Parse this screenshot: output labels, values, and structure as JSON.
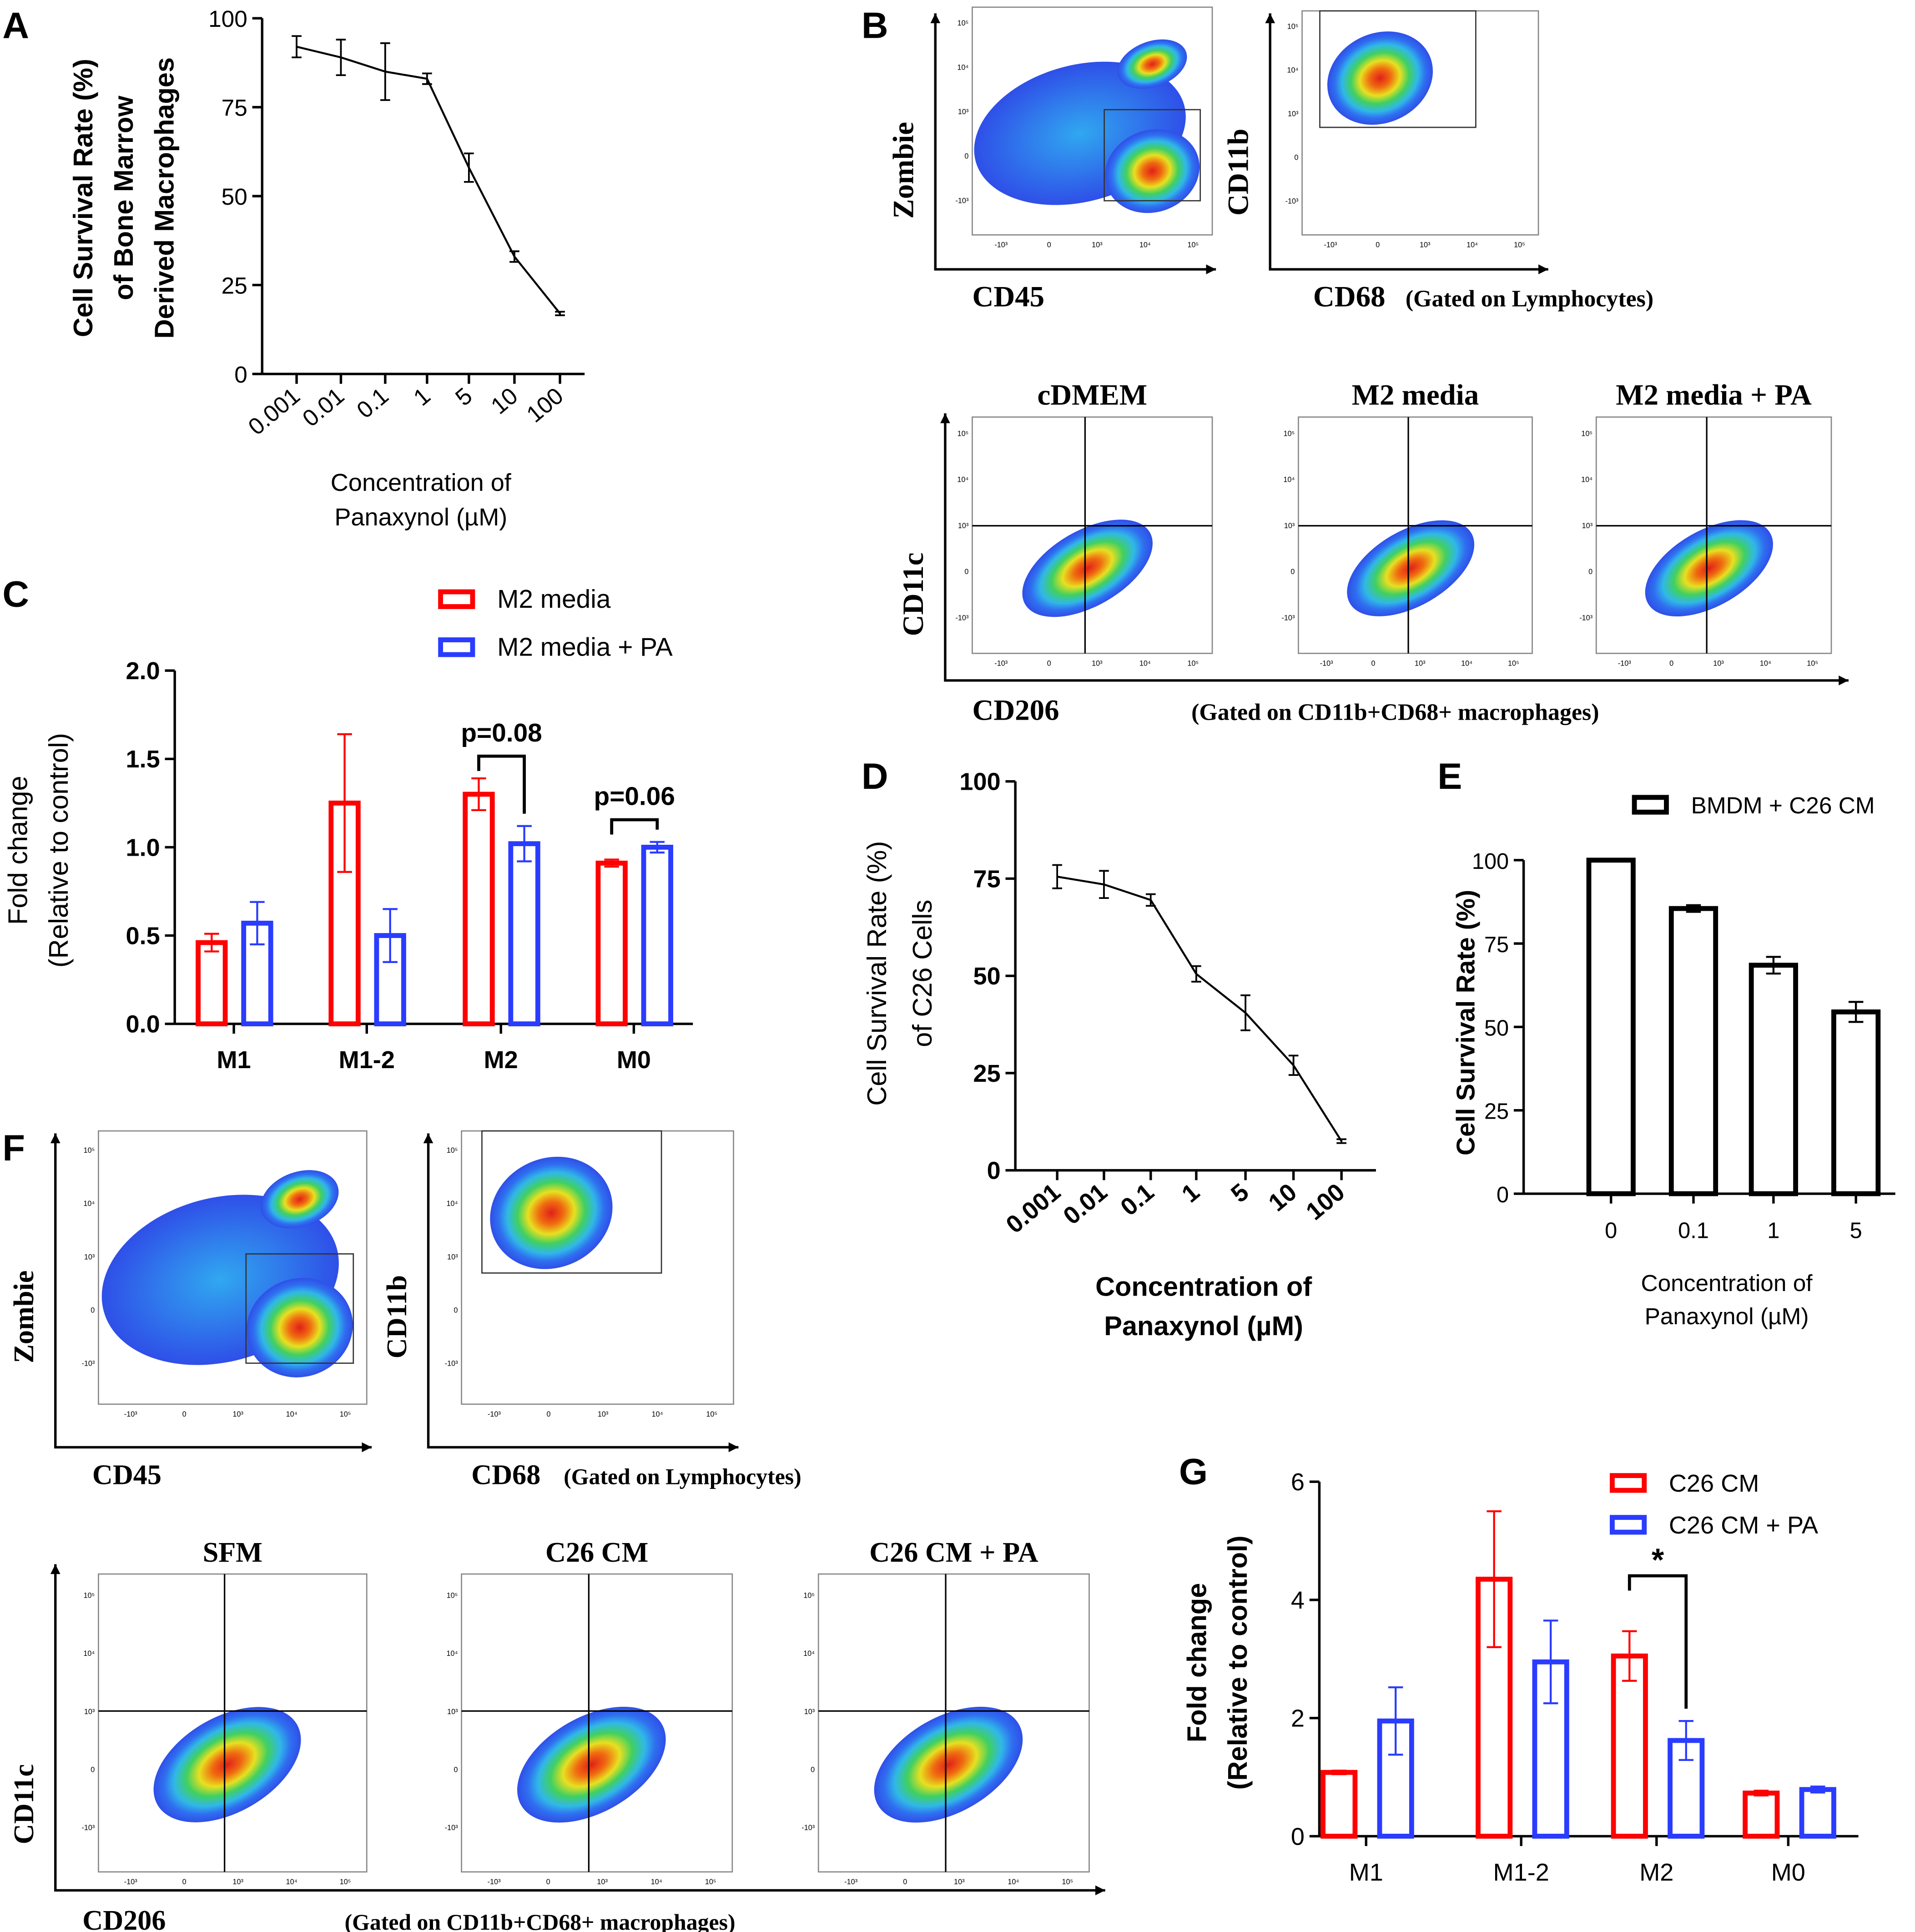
{
  "panel_letters": {
    "A": "A",
    "B": "B",
    "C": "C",
    "D": "D",
    "E": "E",
    "F": "F",
    "G": "G"
  },
  "colors": {
    "red": "#ff0000",
    "blue": "#2a3cff",
    "black": "#000000"
  },
  "flow_ticks": [
    "10⁵",
    "10⁴",
    "10³",
    "0",
    "-10³"
  ],
  "chart_data": [
    {
      "id": "A",
      "type": "line",
      "ylabel_lines": [
        "Cell Survival Rate (%)",
        "of  Bone Marrow",
        "Derived Macrophages"
      ],
      "xlabel_lines": [
        "Concentration of",
        "Panaxynol (µM)"
      ],
      "categories": [
        "0.001",
        "0.01",
        "0.1",
        "1",
        "5",
        "10",
        "100"
      ],
      "values": [
        92,
        89,
        85,
        83,
        58,
        33,
        17
      ],
      "errors": [
        3,
        5,
        8,
        1.5,
        4,
        1.5,
        0.5
      ],
      "ylim": [
        0,
        100
      ],
      "yticks": [
        "0",
        "25",
        "50",
        "75",
        "100"
      ]
    },
    {
      "id": "C",
      "type": "bar",
      "ylabel_lines": [
        "Fold change",
        "(Relative to control)"
      ],
      "categories": [
        "M1",
        "M1-2",
        "M2",
        "M0"
      ],
      "series": [
        {
          "name": "M2 media",
          "color": "#ff0000",
          "values": [
            0.46,
            1.25,
            1.3,
            0.91
          ],
          "errors": [
            0.05,
            0.39,
            0.09,
            0.02
          ]
        },
        {
          "name": "M2 media + PA",
          "color": "#2a3cff",
          "values": [
            0.57,
            0.5,
            1.02,
            1.0
          ],
          "errors": [
            0.12,
            0.15,
            0.1,
            0.03
          ]
        }
      ],
      "annotations": [
        {
          "category": "M2",
          "text": "p=0.08"
        },
        {
          "category": "M0",
          "text": "p=0.06"
        }
      ],
      "ylim": [
        0,
        2
      ],
      "yticks": [
        "0.0",
        "0.5",
        "1.0",
        "1.5",
        "2.0"
      ]
    },
    {
      "id": "D",
      "type": "line",
      "ylabel_lines": [
        "Cell Survival Rate (%)",
        "of  C26 Cells"
      ],
      "xlabel_lines": [
        "Concentration of",
        "Panaxynol (µM)"
      ],
      "categories": [
        "0.001",
        "0.01",
        "0.1",
        "1",
        "5",
        "10",
        "100"
      ],
      "values": [
        75.5,
        73.5,
        69.5,
        50.5,
        40.5,
        27,
        7.5
      ],
      "errors": [
        3,
        3.5,
        1.5,
        2,
        4.5,
        2.5,
        0.5
      ],
      "ylim": [
        0,
        100
      ],
      "yticks": [
        "0",
        "25",
        "50",
        "75",
        "100"
      ]
    },
    {
      "id": "E",
      "type": "bar",
      "ylabel_lines": [
        "Cell Survival Rate (%)"
      ],
      "xlabel_lines": [
        "Concentration of",
        "Panaxynol (µM)"
      ],
      "categories": [
        "0",
        "0.1",
        "1",
        "5"
      ],
      "series": [
        {
          "name": "BMDM + C26 CM",
          "color": "#000000",
          "values": [
            100,
            85.5,
            68.5,
            54.5
          ],
          "errors": [
            0,
            1,
            2.5,
            3
          ]
        }
      ],
      "ylim": [
        0,
        100
      ],
      "yticks": [
        "0",
        "25",
        "50",
        "75",
        "100"
      ]
    },
    {
      "id": "G",
      "type": "bar",
      "ylabel_lines": [
        "Fold change",
        "(Relative to control)"
      ],
      "categories": [
        "M1",
        "M1-2",
        "M2",
        "M0"
      ],
      "series": [
        {
          "name": "C26 CM",
          "color": "#ff0000",
          "values": [
            1.08,
            4.35,
            3.05,
            0.73
          ],
          "errors": [
            0.03,
            1.15,
            0.42,
            0.04
          ]
        },
        {
          "name": "C26 CM + PA",
          "color": "#2a3cff",
          "values": [
            1.95,
            2.95,
            1.62,
            0.79
          ],
          "errors": [
            0.57,
            0.7,
            0.33,
            0.05
          ]
        }
      ],
      "annotations": [
        {
          "category": "M2",
          "text": "*"
        }
      ],
      "ylim": [
        0,
        6
      ],
      "yticks": [
        "0",
        "2",
        "4",
        "6"
      ]
    }
  ],
  "flow_B": {
    "gate1": {
      "y": "Zombie",
      "x": "CD45"
    },
    "gate2": {
      "y": "CD11b",
      "x": "CD68",
      "note": "(Gated on Lymphocytes)"
    },
    "quad": {
      "y": "CD11c",
      "x": "CD206",
      "note": "(Gated on CD11b+CD68+ macrophages)",
      "titles": [
        "cDMEM",
        "M2 media",
        "M2 media + PA"
      ]
    }
  },
  "flow_F": {
    "gate1": {
      "y": "Zombie",
      "x": "CD45"
    },
    "gate2": {
      "y": "CD11b",
      "x": "CD68",
      "note": "(Gated on Lymphocytes)"
    },
    "quad": {
      "y": "CD11c",
      "x": "CD206",
      "note": "(Gated on CD11b+CD68+ macrophages)",
      "titles": [
        "SFM",
        "C26 CM",
        "C26 CM + PA"
      ]
    }
  }
}
